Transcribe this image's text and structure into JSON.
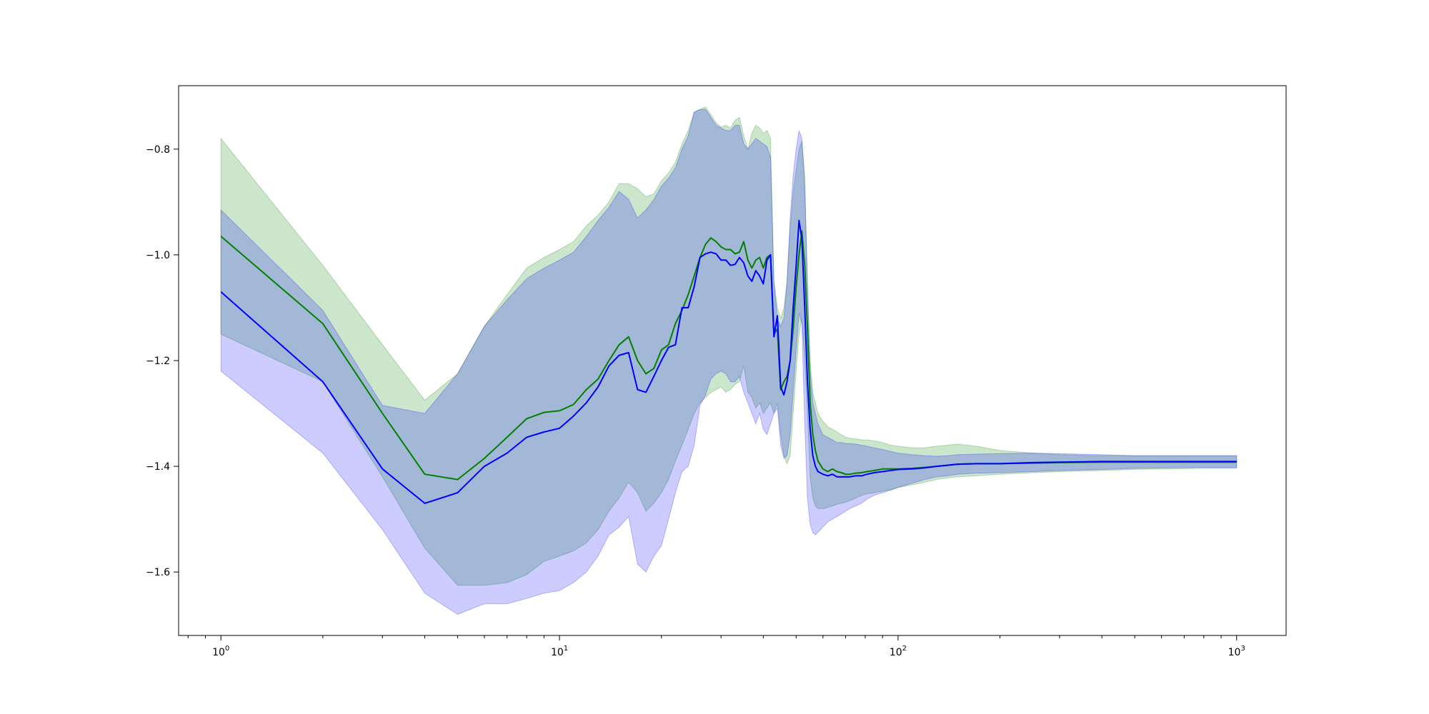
{
  "chart_data": {
    "type": "line",
    "title": "",
    "xlabel": "",
    "ylabel": "",
    "x_scale": "log",
    "xlim": [
      0.75,
      1400
    ],
    "ylim": [
      -1.72,
      -0.68
    ],
    "grid": false,
    "legend": "none",
    "x_ticks": [
      {
        "value": 1,
        "base": "10",
        "exp": "0"
      },
      {
        "value": 10,
        "base": "10",
        "exp": "1"
      },
      {
        "value": 100,
        "base": "10",
        "exp": "2"
      },
      {
        "value": 1000,
        "base": "10",
        "exp": "3"
      }
    ],
    "y_ticks": [
      {
        "value": -0.8,
        "label": "−0.8"
      },
      {
        "value": -1.0,
        "label": "−1.0"
      },
      {
        "value": -1.2,
        "label": "−1.2"
      },
      {
        "value": -1.4,
        "label": "−1.4"
      },
      {
        "value": -1.6,
        "label": "−1.6"
      }
    ],
    "series": [
      {
        "color": "#008000",
        "band_color": "#008000",
        "band_opacity": 0.2,
        "x": [
          1,
          2,
          3,
          4,
          5,
          6,
          7,
          8,
          9,
          10,
          11,
          12,
          13,
          14,
          15,
          16,
          17,
          18,
          19,
          20,
          21,
          22,
          23,
          24,
          25,
          26,
          27,
          28,
          29,
          30,
          31,
          32,
          33,
          34,
          35,
          36,
          37,
          38,
          39,
          40,
          41,
          42,
          43,
          44,
          45,
          46,
          47,
          48,
          49,
          50,
          51,
          52,
          53,
          54,
          55,
          56,
          57,
          58,
          60,
          62,
          64,
          66,
          68,
          70,
          72,
          75,
          78,
          81,
          85,
          90,
          95,
          100,
          110,
          120,
          130,
          140,
          150,
          170,
          200,
          250,
          300,
          400,
          500,
          600,
          800,
          1000
        ],
        "y": [
          -0.965,
          -1.13,
          -1.3,
          -1.415,
          -1.425,
          -1.385,
          -1.345,
          -1.31,
          -1.298,
          -1.295,
          -1.283,
          -1.255,
          -1.235,
          -1.2,
          -1.17,
          -1.155,
          -1.2,
          -1.225,
          -1.215,
          -1.18,
          -1.17,
          -1.13,
          -1.105,
          -1.075,
          -1.04,
          -1.005,
          -0.98,
          -0.968,
          -0.975,
          -0.985,
          -0.99,
          -0.99,
          -0.998,
          -0.995,
          -0.975,
          -1.01,
          -1.025,
          -1.01,
          -1.005,
          -1.025,
          -1.005,
          -1.0,
          -1.15,
          -1.14,
          -1.255,
          -1.24,
          -1.23,
          -1.2,
          -1.14,
          -1.06,
          -1.0,
          -0.955,
          -1.02,
          -1.14,
          -1.28,
          -1.34,
          -1.37,
          -1.39,
          -1.405,
          -1.41,
          -1.405,
          -1.41,
          -1.412,
          -1.415,
          -1.415,
          -1.413,
          -1.412,
          -1.41,
          -1.408,
          -1.405,
          -1.405,
          -1.405,
          -1.404,
          -1.402,
          -1.4,
          -1.398,
          -1.396,
          -1.395,
          -1.395,
          -1.394,
          -1.393,
          -1.392,
          -1.392,
          -1.392,
          -1.392,
          -1.392
        ],
        "upper": [
          -0.78,
          -1.02,
          -1.17,
          -1.275,
          -1.225,
          -1.135,
          -1.075,
          -1.025,
          -1.005,
          -0.99,
          -0.975,
          -0.945,
          -0.925,
          -0.9,
          -0.865,
          -0.865,
          -0.875,
          -0.89,
          -0.885,
          -0.86,
          -0.845,
          -0.825,
          -0.79,
          -0.765,
          -0.73,
          -0.725,
          -0.72,
          -0.735,
          -0.75,
          -0.758,
          -0.755,
          -0.76,
          -0.745,
          -0.74,
          -0.775,
          -0.8,
          -0.77,
          -0.755,
          -0.76,
          -0.77,
          -0.765,
          -0.78,
          -1.05,
          -1.1,
          -1.12,
          -1.1,
          -1.05,
          -0.95,
          -0.88,
          -0.84,
          -0.8,
          -0.785,
          -0.85,
          -1.05,
          -1.2,
          -1.26,
          -1.28,
          -1.3,
          -1.315,
          -1.325,
          -1.33,
          -1.335,
          -1.34,
          -1.345,
          -1.347,
          -1.348,
          -1.35,
          -1.35,
          -1.352,
          -1.355,
          -1.36,
          -1.362,
          -1.365,
          -1.365,
          -1.362,
          -1.36,
          -1.358,
          -1.362,
          -1.37,
          -1.375,
          -1.378,
          -1.38,
          -1.38,
          -1.38,
          -1.38,
          -1.38
        ],
        "lower": [
          -1.15,
          -1.24,
          -1.42,
          -1.555,
          -1.625,
          -1.625,
          -1.62,
          -1.605,
          -1.58,
          -1.57,
          -1.56,
          -1.545,
          -1.52,
          -1.485,
          -1.46,
          -1.43,
          -1.45,
          -1.485,
          -1.47,
          -1.45,
          -1.425,
          -1.39,
          -1.36,
          -1.33,
          -1.3,
          -1.28,
          -1.27,
          -1.26,
          -1.255,
          -1.25,
          -1.26,
          -1.255,
          -1.245,
          -1.24,
          -1.21,
          -1.26,
          -1.27,
          -1.29,
          -1.28,
          -1.3,
          -1.29,
          -1.28,
          -1.3,
          -1.28,
          -1.34,
          -1.38,
          -1.395,
          -1.38,
          -1.3,
          -1.22,
          -1.15,
          -1.12,
          -1.2,
          -1.3,
          -1.42,
          -1.46,
          -1.475,
          -1.48,
          -1.48,
          -1.478,
          -1.475,
          -1.472,
          -1.47,
          -1.468,
          -1.465,
          -1.46,
          -1.455,
          -1.452,
          -1.45,
          -1.447,
          -1.445,
          -1.44,
          -1.435,
          -1.43,
          -1.425,
          -1.422,
          -1.42,
          -1.418,
          -1.415,
          -1.412,
          -1.41,
          -1.408,
          -1.406,
          -1.405,
          -1.404,
          -1.404
        ]
      },
      {
        "color": "#0000ff",
        "band_color": "#0000ff",
        "band_opacity": 0.2,
        "x": [
          1,
          2,
          3,
          4,
          5,
          6,
          7,
          8,
          9,
          10,
          11,
          12,
          13,
          14,
          15,
          16,
          17,
          18,
          19,
          20,
          21,
          22,
          23,
          24,
          25,
          26,
          27,
          28,
          29,
          30,
          31,
          32,
          33,
          34,
          35,
          36,
          37,
          38,
          39,
          40,
          41,
          42,
          43,
          44,
          45,
          46,
          47,
          48,
          49,
          50,
          51,
          52,
          53,
          54,
          55,
          56,
          57,
          58,
          60,
          62,
          64,
          66,
          68,
          70,
          72,
          75,
          78,
          81,
          85,
          90,
          95,
          100,
          110,
          120,
          130,
          140,
          150,
          170,
          200,
          250,
          300,
          400,
          500,
          600,
          800,
          1000
        ],
        "y": [
          -1.07,
          -1.24,
          -1.405,
          -1.47,
          -1.45,
          -1.4,
          -1.375,
          -1.345,
          -1.335,
          -1.328,
          -1.305,
          -1.28,
          -1.25,
          -1.21,
          -1.19,
          -1.185,
          -1.255,
          -1.26,
          -1.23,
          -1.2,
          -1.175,
          -1.17,
          -1.1,
          -1.1,
          -1.06,
          -1.005,
          -0.998,
          -0.995,
          -0.998,
          -1.01,
          -1.01,
          -1.02,
          -1.018,
          -1.005,
          -1.015,
          -1.04,
          -1.05,
          -1.03,
          -1.04,
          -1.055,
          -1.01,
          -1.0,
          -1.155,
          -1.115,
          -1.25,
          -1.265,
          -1.24,
          -1.2,
          -1.1,
          -1.02,
          -0.935,
          -0.97,
          -1.1,
          -1.24,
          -1.33,
          -1.38,
          -1.4,
          -1.41,
          -1.415,
          -1.418,
          -1.415,
          -1.42,
          -1.42,
          -1.42,
          -1.42,
          -1.418,
          -1.418,
          -1.415,
          -1.412,
          -1.41,
          -1.408,
          -1.406,
          -1.405,
          -1.403,
          -1.4,
          -1.398,
          -1.396,
          -1.395,
          -1.395,
          -1.393,
          -1.392,
          -1.391,
          -1.391,
          -1.391,
          -1.391,
          -1.391
        ],
        "upper": [
          -0.915,
          -1.105,
          -1.285,
          -1.3,
          -1.225,
          -1.135,
          -1.085,
          -1.045,
          -1.025,
          -1.01,
          -0.995,
          -0.965,
          -0.935,
          -0.91,
          -0.88,
          -0.895,
          -0.93,
          -0.915,
          -0.895,
          -0.87,
          -0.855,
          -0.835,
          -0.8,
          -0.775,
          -0.73,
          -0.725,
          -0.725,
          -0.74,
          -0.755,
          -0.76,
          -0.765,
          -0.765,
          -0.755,
          -0.755,
          -0.79,
          -0.8,
          -0.79,
          -0.78,
          -0.785,
          -0.79,
          -0.795,
          -0.815,
          -1.05,
          -1.12,
          -1.135,
          -1.12,
          -1.05,
          -0.93,
          -0.85,
          -0.8,
          -0.765,
          -0.78,
          -0.87,
          -1.06,
          -1.22,
          -1.28,
          -1.3,
          -1.32,
          -1.34,
          -1.345,
          -1.35,
          -1.355,
          -1.355,
          -1.357,
          -1.357,
          -1.358,
          -1.36,
          -1.362,
          -1.365,
          -1.368,
          -1.372,
          -1.375,
          -1.378,
          -1.38,
          -1.381,
          -1.38,
          -1.378,
          -1.377,
          -1.376,
          -1.375,
          -1.376,
          -1.378,
          -1.38,
          -1.38,
          -1.38,
          -1.38
        ],
        "lower": [
          -1.22,
          -1.375,
          -1.52,
          -1.64,
          -1.68,
          -1.66,
          -1.66,
          -1.65,
          -1.64,
          -1.635,
          -1.62,
          -1.6,
          -1.57,
          -1.53,
          -1.515,
          -1.495,
          -1.585,
          -1.6,
          -1.57,
          -1.55,
          -1.5,
          -1.45,
          -1.41,
          -1.4,
          -1.36,
          -1.285,
          -1.265,
          -1.235,
          -1.225,
          -1.22,
          -1.225,
          -1.24,
          -1.24,
          -1.23,
          -1.26,
          -1.28,
          -1.3,
          -1.32,
          -1.3,
          -1.33,
          -1.34,
          -1.32,
          -1.3,
          -1.29,
          -1.36,
          -1.385,
          -1.38,
          -1.34,
          -1.26,
          -1.18,
          -1.11,
          -1.13,
          -1.32,
          -1.46,
          -1.51,
          -1.525,
          -1.53,
          -1.525,
          -1.515,
          -1.505,
          -1.5,
          -1.495,
          -1.49,
          -1.485,
          -1.48,
          -1.475,
          -1.47,
          -1.462,
          -1.455,
          -1.45,
          -1.445,
          -1.44,
          -1.432,
          -1.425,
          -1.42,
          -1.418,
          -1.415,
          -1.413,
          -1.412,
          -1.41,
          -1.408,
          -1.406,
          -1.404,
          -1.403,
          -1.402,
          -1.402
        ]
      }
    ]
  }
}
